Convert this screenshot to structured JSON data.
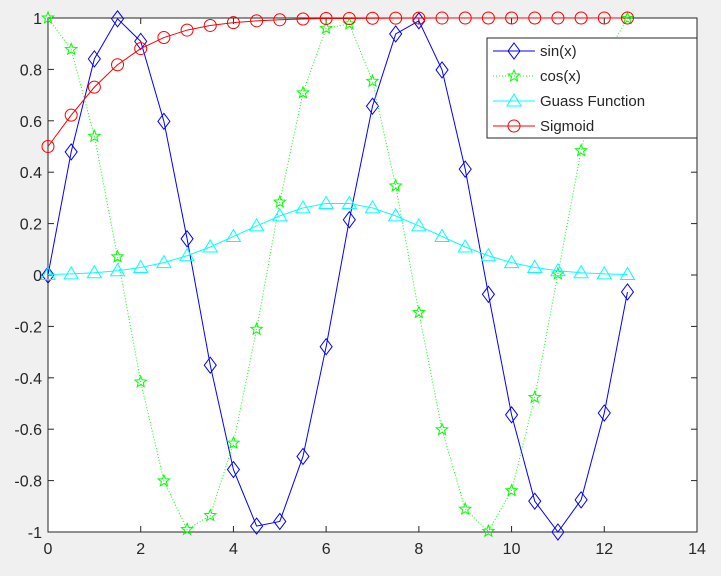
{
  "chart_data": {
    "type": "line",
    "title": "",
    "xlabel": "",
    "ylabel": "",
    "xlim": [
      0,
      14
    ],
    "ylim": [
      -1,
      1
    ],
    "grid": false,
    "legend_position": "top-right",
    "xticks": [
      "0",
      "2",
      "4",
      "6",
      "8",
      "10",
      "12",
      "14"
    ],
    "yticks": [
      "-1",
      "-0.8",
      "-0.6",
      "-0.4",
      "-0.2",
      "0",
      "0.2",
      "0.4",
      "0.6",
      "0.8",
      "1"
    ],
    "x": [
      0,
      0.5,
      1,
      1.5,
      2,
      2.5,
      3,
      3.5,
      4,
      4.5,
      5,
      5.5,
      6,
      6.5,
      7,
      7.5,
      8,
      8.5,
      9,
      9.5,
      10,
      10.5,
      11,
      11.5,
      12,
      12.5
    ],
    "series": [
      {
        "name": "sin(x)",
        "color": "#0000ff",
        "line": "solid",
        "marker": "diamond",
        "values": [
          0,
          0.479,
          0.841,
          0.997,
          0.909,
          0.598,
          0.141,
          -0.351,
          -0.757,
          -0.977,
          -0.959,
          -0.706,
          -0.279,
          0.215,
          0.657,
          0.938,
          0.989,
          0.798,
          0.412,
          -0.075,
          -0.544,
          -0.88,
          -1.0,
          -0.875,
          -0.537,
          -0.066
        ]
      },
      {
        "name": "cos(x)",
        "color": "#00ff00",
        "line": "dotted",
        "marker": "pentagram",
        "values": [
          1,
          0.878,
          0.54,
          0.071,
          -0.416,
          -0.801,
          -0.99,
          -0.936,
          -0.654,
          -0.211,
          0.284,
          0.709,
          0.96,
          0.977,
          0.754,
          0.347,
          -0.146,
          -0.602,
          -0.911,
          -0.997,
          -0.839,
          -0.476,
          0.004,
          0.484,
          0.844,
          0.998
        ]
      },
      {
        "name": "Guass Function",
        "color": "#00ffff",
        "line": "solid",
        "marker": "triangle",
        "values": [
          0.002,
          0.0045,
          0.0089,
          0.0167,
          0.029,
          0.048,
          0.075,
          0.109,
          0.15,
          0.191,
          0.23,
          0.261,
          0.278,
          0.278,
          0.261,
          0.23,
          0.191,
          0.15,
          0.109,
          0.075,
          0.048,
          0.029,
          0.0167,
          0.0089,
          0.0045,
          0.002
        ]
      },
      {
        "name": "Sigmoid",
        "color": "#ff0000",
        "line": "solid",
        "marker": "circle",
        "values": [
          0.5,
          0.622,
          0.731,
          0.818,
          0.881,
          0.924,
          0.953,
          0.971,
          0.982,
          0.989,
          0.993,
          0.996,
          0.998,
          0.998,
          0.999,
          0.9994,
          0.9997,
          0.9998,
          0.9999,
          0.9999,
          1,
          1,
          1,
          1,
          1,
          1
        ]
      }
    ]
  }
}
